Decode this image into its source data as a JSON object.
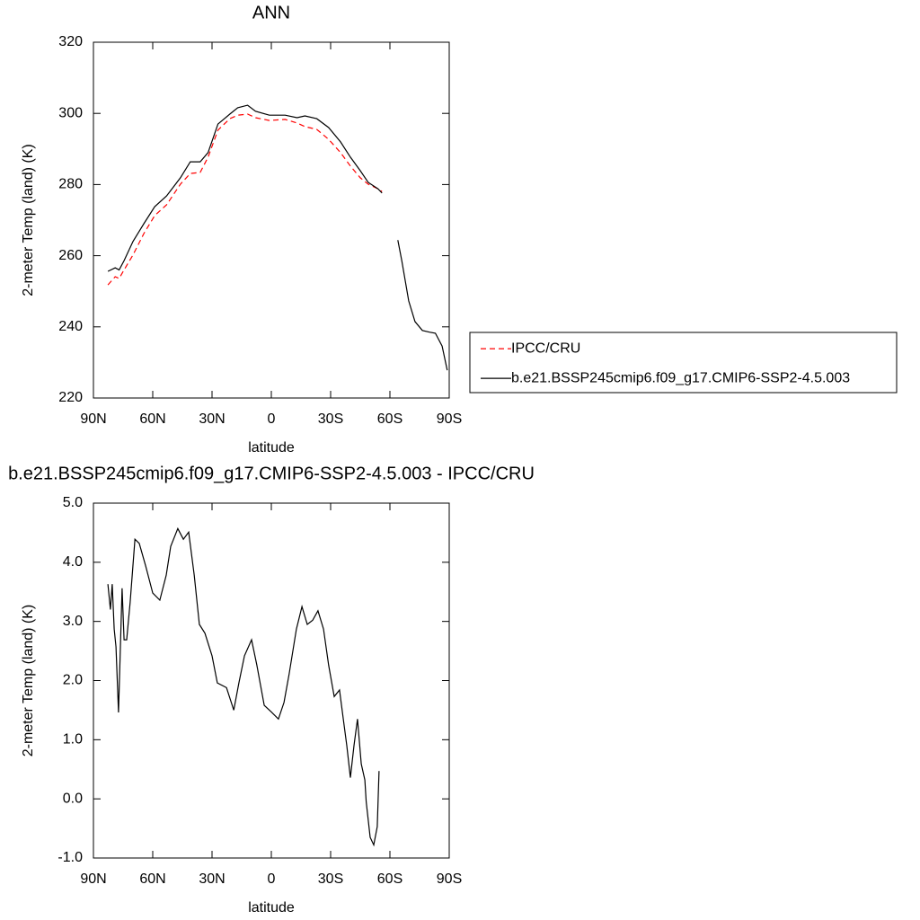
{
  "chart_data": [
    {
      "type": "line",
      "title": "ANN",
      "x_label": "latitude",
      "y_label": "2-meter Temp (land) (K)",
      "x": [
        82.7,
        79,
        77,
        74.5,
        70,
        64.5,
        59,
        53,
        46,
        41,
        36,
        32,
        27,
        21,
        17,
        12,
        8,
        1,
        -7,
        -13,
        -17,
        -23,
        -29,
        -35,
        -40,
        -45,
        -49,
        -54,
        -56,
        -60,
        -64,
        -66,
        -69.5,
        -72.7,
        -76.4,
        -80,
        -83,
        -86.4,
        -89
      ],
      "series": [
        {
          "name": "IPCC/CRU",
          "color": "#ff0000",
          "dash": true,
          "values": [
            251.8,
            254.1,
            253.6,
            256,
            260.2,
            266.2,
            271.3,
            274.3,
            280.1,
            283.1,
            283.4,
            287.7,
            295.3,
            298.5,
            299.5,
            299.8,
            298.8,
            298,
            298.3,
            297.3,
            296.3,
            295.5,
            292.7,
            289,
            285.2,
            281.9,
            280.1,
            278.8,
            278,
            null,
            null,
            null,
            null,
            null,
            null,
            null,
            null,
            null,
            null
          ]
        },
        {
          "name": "b.e21.BSSP245cmip6.f09_g17.CMIP6-SSP2-4.5.003",
          "color": "#000000",
          "dash": false,
          "values": [
            255.6,
            256.6,
            256,
            258.6,
            264,
            269,
            273.8,
            276.8,
            281.9,
            286.4,
            286.4,
            289,
            297,
            299.8,
            301.6,
            302.3,
            300.6,
            299.5,
            299.5,
            298.8,
            299.3,
            298.5,
            296,
            292,
            287.7,
            283.9,
            280.6,
            278.8,
            277.6,
            null,
            264.4,
            258.6,
            247.3,
            241.5,
            239,
            238.5,
            238.2,
            234.6,
            227.8
          ]
        }
      ],
      "xlim": [
        90,
        -90
      ],
      "xticks": [
        {
          "value": 90,
          "label": "90N"
        },
        {
          "value": 60,
          "label": "60N"
        },
        {
          "value": 30,
          "label": "30N"
        },
        0,
        {
          "value": -30,
          "label": "30S"
        },
        {
          "value": -60,
          "label": "60S"
        },
        {
          "value": -90,
          "label": "90S"
        }
      ],
      "ylim": [
        220,
        320
      ],
      "yticks": [
        220,
        240,
        260,
        280,
        300,
        320
      ],
      "legend": "right"
    },
    {
      "type": "line",
      "title": "b.e21.BSSP245cmip6.f09_g17.CMIP6-SSP2-4.5.003 - IPCC/CRU",
      "x_label": "latitude",
      "y_label": "2-meter Temp (land) (K)",
      "x": [
        82.7,
        81.4,
        80.5,
        79.5,
        78.6,
        77.3,
        75.5,
        74.5,
        73.2,
        71.4,
        69,
        66.8,
        63.6,
        60,
        56.4,
        53.2,
        50.9,
        47.3,
        44.5,
        41.8,
        39,
        36.4,
        33.6,
        30,
        27.3,
        22.7,
        19,
        16.4,
        13.6,
        10,
        7.3,
        3.6,
        0,
        -3.6,
        -6.4,
        -9,
        -12.7,
        -15.5,
        -18.2,
        -20.9,
        -23.6,
        -26.4,
        -29,
        -31.8,
        -34.5,
        -36.4,
        -38.2,
        -40,
        -41.8,
        -43.6,
        -45.5,
        -47.3,
        -48,
        -50,
        -51.8,
        -53.6,
        -54.5
      ],
      "series": [
        {
          "name": null,
          "color": "#000000",
          "dash": false,
          "values": [
            3.63,
            3.2,
            3.63,
            2.87,
            2.57,
            1.46,
            3.56,
            2.69,
            2.69,
            3.33,
            4.39,
            4.32,
            3.94,
            3.48,
            3.36,
            3.78,
            4.27,
            4.57,
            4.39,
            4.51,
            3.78,
            2.95,
            2.8,
            2.42,
            1.96,
            1.88,
            1.5,
            1.96,
            2.42,
            2.69,
            2.26,
            1.58,
            1.47,
            1.35,
            1.63,
            2.11,
            2.87,
            3.25,
            2.95,
            3.02,
            3.18,
            2.87,
            2.26,
            1.73,
            1.84,
            1.35,
            0.9,
            0.36,
            0.9,
            1.35,
            0.59,
            0.32,
            -0.05,
            -0.65,
            -0.78,
            -0.47,
            0.47
          ]
        }
      ],
      "xlim": [
        90,
        -90
      ],
      "xticks": [
        {
          "value": 90,
          "label": "90N"
        },
        {
          "value": 60,
          "label": "60N"
        },
        {
          "value": 30,
          "label": "30N"
        },
        0,
        {
          "value": -30,
          "label": "30S"
        },
        {
          "value": -60,
          "label": "60S"
        },
        {
          "value": -90,
          "label": "90S"
        }
      ],
      "ylim": [
        -1,
        5
      ],
      "yticks": [
        {
          "value": -1,
          "label": "-1.0"
        },
        {
          "value": 0,
          "label": "0.0"
        },
        {
          "value": 1,
          "label": "1.0"
        },
        {
          "value": 2,
          "label": "2.0"
        },
        {
          "value": 3,
          "label": "3.0"
        },
        {
          "value": 4,
          "label": "4.0"
        },
        {
          "value": 5,
          "label": "5.0"
        }
      ]
    }
  ]
}
